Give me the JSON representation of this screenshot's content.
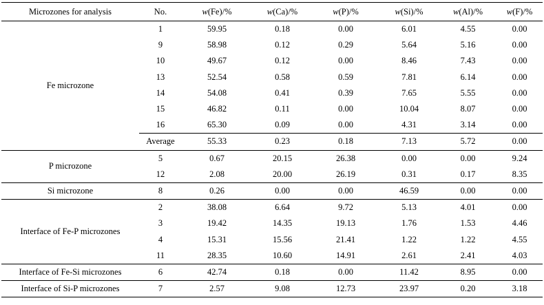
{
  "header": {
    "zone": "Microzones for analysis",
    "no": "No.",
    "cols": [
      {
        "var": "w",
        "el": "(Fe)/%"
      },
      {
        "var": "w",
        "el": "(Ca)/%"
      },
      {
        "var": "w",
        "el": "(P)/%"
      },
      {
        "var": "w",
        "el": "(Si)/%"
      },
      {
        "var": "w",
        "el": "(Al)/%"
      },
      {
        "var": "w",
        "el": "(F)/%"
      }
    ]
  },
  "groups": [
    {
      "name": "Fe microzone",
      "rows": [
        {
          "no": "1",
          "vals": [
            "59.95",
            "0.18",
            "0.00",
            "6.01",
            "4.55",
            "0.00"
          ]
        },
        {
          "no": "9",
          "vals": [
            "58.98",
            "0.12",
            "0.29",
            "5.64",
            "5.16",
            "0.00"
          ]
        },
        {
          "no": "10",
          "vals": [
            "49.67",
            "0.12",
            "0.00",
            "8.46",
            "7.43",
            "0.00"
          ]
        },
        {
          "no": "13",
          "vals": [
            "52.54",
            "0.58",
            "0.59",
            "7.81",
            "6.14",
            "0.00"
          ]
        },
        {
          "no": "14",
          "vals": [
            "54.08",
            "0.41",
            "0.39",
            "7.65",
            "5.55",
            "0.00"
          ]
        },
        {
          "no": "15",
          "vals": [
            "46.82",
            "0.11",
            "0.00",
            "10.04",
            "8.07",
            "0.00"
          ]
        },
        {
          "no": "16",
          "vals": [
            "65.30",
            "0.09",
            "0.00",
            "4.31",
            "3.14",
            "0.00"
          ]
        }
      ],
      "average": {
        "label": "Average",
        "vals": [
          "55.33",
          "0.23",
          "0.18",
          "7.13",
          "5.72",
          "0.00"
        ]
      }
    },
    {
      "name": "P microzone",
      "rows": [
        {
          "no": "5",
          "vals": [
            "0.67",
            "20.15",
            "26.38",
            "0.00",
            "0.00",
            "9.24"
          ]
        },
        {
          "no": "12",
          "vals": [
            "2.08",
            "20.00",
            "26.19",
            "0.31",
            "0.17",
            "8.35"
          ]
        }
      ]
    },
    {
      "name": "Si microzone",
      "rows": [
        {
          "no": "8",
          "vals": [
            "0.26",
            "0.00",
            "0.00",
            "46.59",
            "0.00",
            "0.00"
          ]
        }
      ]
    },
    {
      "name": "Interface of Fe-P microzones",
      "rows": [
        {
          "no": "2",
          "vals": [
            "38.08",
            "6.64",
            "9.72",
            "5.13",
            "4.01",
            "0.00"
          ]
        },
        {
          "no": "3",
          "vals": [
            "19.42",
            "14.35",
            "19.13",
            "1.76",
            "1.53",
            "4.46"
          ]
        },
        {
          "no": "4",
          "vals": [
            "15.31",
            "15.56",
            "21.41",
            "1.22",
            "1.22",
            "4.55"
          ]
        },
        {
          "no": "11",
          "vals": [
            "28.35",
            "10.60",
            "14.91",
            "2.61",
            "2.41",
            "4.03"
          ]
        }
      ]
    },
    {
      "name": "Interface of Fe-Si microzones",
      "rows": [
        {
          "no": "6",
          "vals": [
            "42.74",
            "0.18",
            "0.00",
            "11.42",
            "8.95",
            "0.00"
          ]
        }
      ]
    },
    {
      "name": "Interface of Si-P microzones",
      "rows": [
        {
          "no": "7",
          "vals": [
            "2.57",
            "9.08",
            "12.73",
            "23.97",
            "0.20",
            "3.18"
          ]
        }
      ]
    }
  ]
}
